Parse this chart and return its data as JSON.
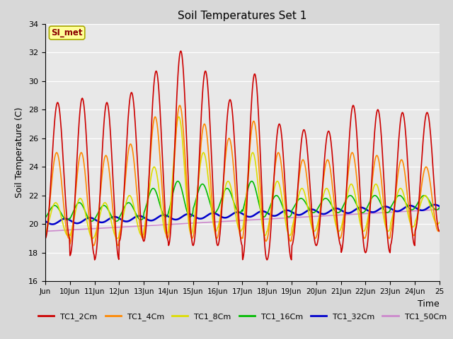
{
  "title": "Soil Temperatures Set 1",
  "xlabel": "Time",
  "ylabel": "Soil Temperature (C)",
  "ylim": [
    16,
    34
  ],
  "yticks": [
    16,
    18,
    20,
    22,
    24,
    26,
    28,
    30,
    32,
    34
  ],
  "background_color": "#d8d8d8",
  "plot_bg_color": "#e8e8e8",
  "annotation_text": "SI_met",
  "annotation_color": "#8B0000",
  "annotation_bg": "#ffff99",
  "annotation_border": "#aaaa00",
  "series": {
    "TC1_2Cm": {
      "color": "#cc0000",
      "lw": 1.2
    },
    "TC1_4Cm": {
      "color": "#ff8800",
      "lw": 1.2
    },
    "TC1_8Cm": {
      "color": "#dddd00",
      "lw": 1.2
    },
    "TC1_16Cm": {
      "color": "#00bb00",
      "lw": 1.2
    },
    "TC1_32Cm": {
      "color": "#0000cc",
      "lw": 1.8
    },
    "TC1_50Cm": {
      "color": "#cc88cc",
      "lw": 1.2
    }
  },
  "legend_colors": {
    "TC1_2Cm": "#cc0000",
    "TC1_4Cm": "#ff8800",
    "TC1_8Cm": "#dddd00",
    "TC1_16Cm": "#00bb00",
    "TC1_32Cm": "#0000cc",
    "TC1_50Cm": "#cc88cc"
  },
  "xtick_labels": [
    "Jun",
    "10Jun",
    "11Jun",
    "12Jun",
    "13Jun",
    "14Jun",
    "15Jun",
    "16Jun",
    "17Jun",
    "18Jun",
    "19Jun",
    "20Jun",
    "21Jun",
    "22Jun",
    "23Jun",
    "24Jun",
    "25"
  ],
  "peaks_2cm": [
    28.5,
    28.8,
    28.5,
    29.2,
    30.7,
    32.1,
    30.7,
    28.7,
    30.5,
    27.0,
    26.6,
    26.5,
    28.3,
    28.0,
    27.8,
    27.8
  ],
  "troughs_2cm": [
    19.0,
    17.8,
    17.5,
    18.8,
    18.8,
    18.5,
    18.5,
    18.5,
    17.5,
    17.5,
    18.5,
    18.5,
    18.0,
    18.0,
    18.5,
    19.5
  ],
  "peaks_4cm": [
    25.0,
    25.0,
    24.8,
    25.6,
    27.5,
    28.3,
    27.0,
    26.0,
    27.2,
    25.0,
    24.5,
    24.5,
    25.0,
    24.8,
    24.5,
    24.0
  ],
  "troughs_4cm": [
    19.0,
    18.5,
    18.5,
    19.0,
    19.0,
    19.0,
    19.0,
    19.0,
    18.8,
    18.8,
    19.0,
    19.0,
    19.0,
    19.0,
    19.2,
    19.5
  ],
  "peaks_8cm": [
    21.5,
    21.8,
    21.5,
    22.0,
    24.0,
    27.5,
    25.0,
    23.0,
    25.0,
    23.0,
    22.5,
    22.5,
    22.8,
    22.8,
    22.5,
    22.0
  ],
  "troughs_8cm": [
    19.2,
    19.0,
    19.0,
    19.2,
    19.3,
    19.3,
    19.5,
    19.5,
    19.2,
    19.2,
    19.5,
    19.5,
    19.5,
    19.5,
    19.8,
    20.0
  ],
  "peaks_16cm": [
    21.3,
    21.5,
    21.3,
    21.5,
    22.5,
    23.0,
    22.8,
    22.5,
    23.0,
    22.0,
    21.8,
    21.8,
    22.0,
    22.0,
    22.0,
    22.0
  ],
  "troughs_16cm": [
    20.3,
    20.2,
    20.2,
    20.3,
    20.5,
    20.5,
    20.8,
    20.8,
    20.5,
    20.5,
    20.8,
    20.8,
    20.8,
    20.8,
    21.0,
    21.0
  ]
}
